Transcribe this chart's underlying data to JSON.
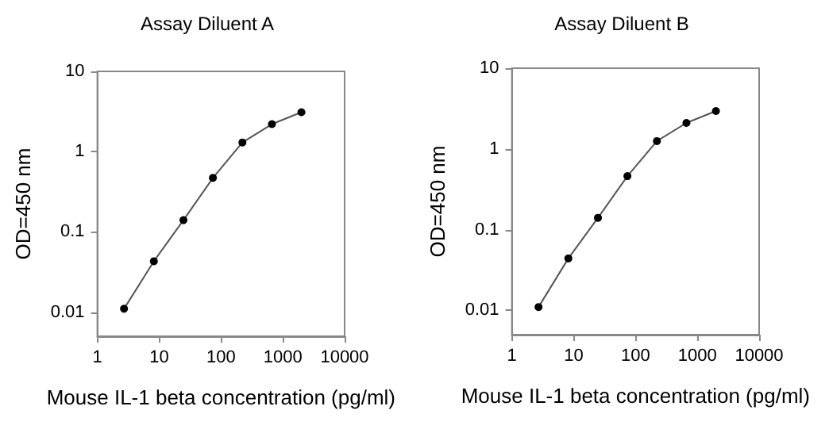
{
  "chart_data": [
    {
      "type": "line",
      "title": "Assay Diluent A",
      "xlabel": "Mouse IL-1 beta concentration (pg/ml)",
      "ylabel": "OD=450 nm",
      "log": "xy",
      "xlim": [
        1,
        10000
      ],
      "xticks": [
        1,
        10,
        100,
        1000,
        10000
      ],
      "ylim": [
        0.005,
        10
      ],
      "yticks": [
        0.01,
        0.1,
        1,
        10
      ],
      "marker": "circle",
      "line_style": "solid",
      "grid": false,
      "series": [
        {
          "color": "#000000",
          "x": [
            2.7,
            8.2,
            24.7,
            74,
            222,
            667,
            2000
          ],
          "values": [
            0.011,
            0.043,
            0.14,
            0.47,
            1.3,
            2.2,
            3.1
          ]
        }
      ]
    },
    {
      "type": "line",
      "title": "Assay Diluent B",
      "xlabel": "Mouse IL-1 beta concentration (pg/ml)",
      "ylabel": "OD=450 nm",
      "log": "xy",
      "xlim": [
        1,
        10000
      ],
      "xticks": [
        1,
        10,
        100,
        1000,
        10000
      ],
      "ylim": [
        0.005,
        10
      ],
      "yticks": [
        0.01,
        0.1,
        1,
        10
      ],
      "marker": "circle",
      "line_style": "solid",
      "grid": false,
      "series": [
        {
          "color": "#000000",
          "x": [
            2.7,
            8.2,
            24.7,
            74,
            222,
            667,
            2000
          ],
          "values": [
            0.011,
            0.044,
            0.14,
            0.46,
            1.25,
            2.1,
            2.95
          ]
        }
      ]
    }
  ]
}
